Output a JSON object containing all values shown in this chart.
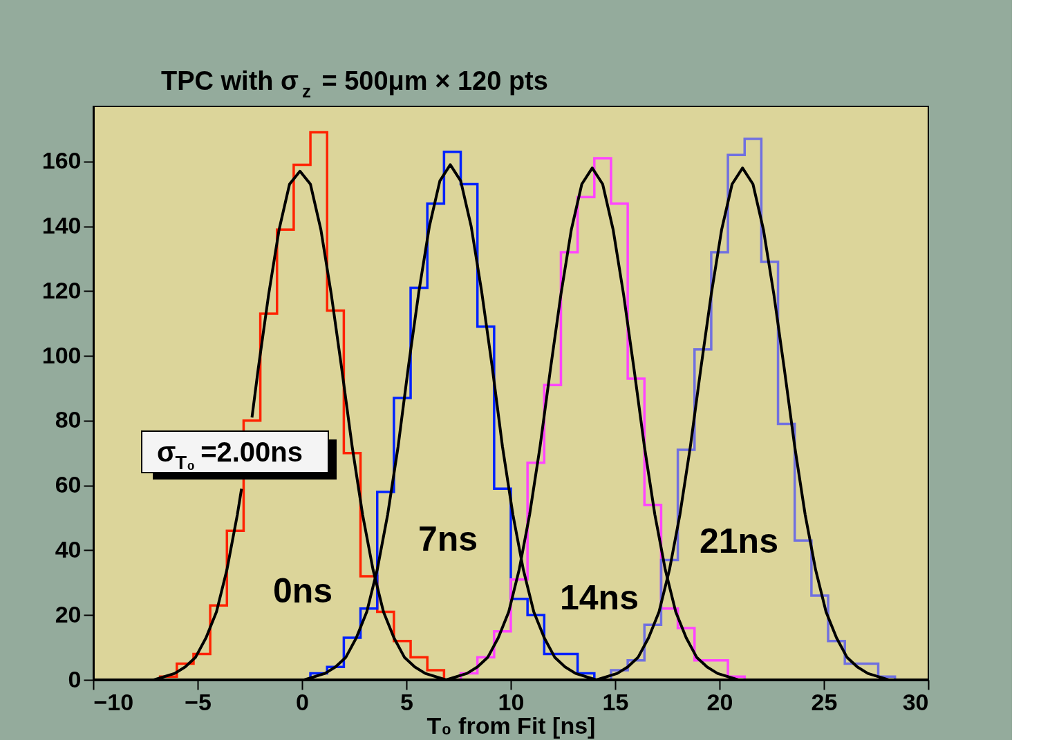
{
  "chart_data": {
    "type": "histogram",
    "title": "TPC with σ$_{z}$ = 500μm × 120 pts",
    "xlabel": "T₀ from Fit [ns]",
    "xlim": [
      -10,
      30
    ],
    "ylim": [
      0,
      177
    ],
    "xticks": [
      -10,
      -5,
      0,
      5,
      10,
      15,
      20,
      25,
      30
    ],
    "yticks": [
      0,
      20,
      40,
      60,
      80,
      100,
      120,
      140,
      160
    ],
    "bins": [
      -10,
      -9.2,
      -8.4,
      -7.6,
      -6.8,
      -6,
      -5.2,
      -4.4,
      -3.6,
      -2.8,
      -2,
      -1.2,
      -0.4,
      0.4,
      1.2,
      2,
      2.8,
      3.6,
      4.4,
      5.2,
      6,
      6.8,
      7.6,
      8.4,
      9.2,
      10,
      10.8,
      11.6,
      12.4,
      13.2,
      14,
      14.8,
      15.6,
      16.4,
      17.2,
      18,
      18.8,
      19.6,
      20.4,
      21.2,
      22,
      22.8,
      23.6,
      24.4,
      25.2,
      26,
      26.8,
      27.6,
      28.4,
      29.2,
      30
    ],
    "series": [
      {
        "color": "#ff2200",
        "values": [
          0,
          0,
          0,
          0,
          1,
          5,
          8,
          23,
          46,
          80,
          113,
          139,
          159,
          169,
          114,
          70,
          32,
          21,
          12,
          7,
          3,
          0,
          0,
          0,
          0,
          0,
          0,
          0,
          0,
          0,
          0,
          0,
          0,
          0,
          0,
          0,
          0,
          0,
          0,
          0,
          0,
          0,
          0,
          0,
          0,
          0,
          0,
          0,
          0,
          0
        ]
      },
      {
        "color": "#0022ff",
        "values": [
          0,
          0,
          0,
          0,
          0,
          0,
          0,
          0,
          0,
          0,
          0,
          0,
          0,
          2,
          4,
          13,
          22,
          58,
          87,
          121,
          147,
          163,
          153,
          109,
          59,
          25,
          20,
          8,
          8,
          2,
          0,
          0,
          0,
          0,
          0,
          0,
          0,
          0,
          0,
          0,
          0,
          0,
          0,
          0,
          0,
          0,
          0,
          0,
          0,
          0
        ]
      },
      {
        "color": "#ff44ff",
        "values": [
          0,
          0,
          0,
          0,
          0,
          0,
          0,
          0,
          0,
          0,
          0,
          0,
          0,
          0,
          0,
          0,
          0,
          0,
          0,
          0,
          0,
          0,
          2,
          7,
          15,
          31,
          67,
          91,
          132,
          149,
          161,
          147,
          93,
          54,
          22,
          16,
          6,
          6,
          1,
          0,
          0,
          0,
          0,
          0,
          0,
          0,
          0,
          0,
          0,
          0
        ]
      },
      {
        "color": "#7070e0",
        "values": [
          0,
          0,
          0,
          0,
          0,
          0,
          0,
          0,
          0,
          0,
          0,
          0,
          0,
          0,
          0,
          0,
          0,
          0,
          0,
          0,
          0,
          0,
          0,
          0,
          0,
          0,
          0,
          0,
          0,
          0,
          0,
          3,
          6,
          17,
          37,
          71,
          102,
          132,
          162,
          167,
          129,
          79,
          43,
          26,
          12,
          5,
          5,
          1,
          0,
          0
        ]
      },
      {
        "type": "line",
        "color": "#000000",
        "x": [
          -10,
          -7.1,
          -6.1,
          -5.6,
          -5.1,
          -4.6,
          -4.1,
          -3.6,
          -3.1,
          -2.9,
          -2.6,
          -2.4,
          -2.1,
          -1.6,
          -1.1,
          -0.6,
          -0.1,
          0.4,
          0.9,
          1.4,
          1.9,
          2.4,
          2.9,
          3.4,
          3.9,
          4.4,
          4.9,
          5.4,
          5.9,
          6.9,
          30
        ],
        "values": [
          0,
          0,
          2,
          4,
          7,
          13,
          21,
          34,
          51,
          59,
          null,
          81,
          96,
          119,
          139,
          153,
          157,
          153,
          139,
          119,
          96,
          72,
          51,
          34,
          21,
          13,
          7,
          4,
          2,
          0,
          0
        ]
      },
      {
        "type": "line",
        "color": "#000000",
        "x": [
          -10,
          0.1,
          1.1,
          1.6,
          2.1,
          2.6,
          3.1,
          3.6,
          4.1,
          4.6,
          5.1,
          5.6,
          6.1,
          6.6,
          7.1,
          7.6,
          8.1,
          8.6,
          9.1,
          9.6,
          10.1,
          10.6,
          11.1,
          11.6,
          12.1,
          12.6,
          13.1,
          14.1,
          30
        ],
        "values": [
          0,
          0,
          2,
          4,
          7,
          13,
          21,
          34,
          51,
          72,
          97,
          120,
          140,
          154,
          159,
          154,
          140,
          120,
          97,
          72,
          51,
          34,
          21,
          13,
          7,
          4,
          2,
          0,
          0
        ]
      },
      {
        "type": "line",
        "color": "#000000",
        "x": [
          -10,
          6.9,
          7.9,
          8.4,
          8.9,
          9.4,
          9.9,
          10.4,
          10.9,
          11.4,
          11.9,
          12.4,
          12.9,
          13.4,
          13.9,
          14.4,
          14.9,
          15.4,
          15.9,
          16.4,
          16.9,
          17.4,
          17.9,
          18.4,
          18.9,
          19.4,
          19.9,
          20.9,
          30
        ],
        "values": [
          0,
          0,
          2,
          4,
          7,
          13,
          21,
          34,
          51,
          72,
          96,
          119,
          139,
          153,
          158,
          153,
          139,
          119,
          96,
          72,
          51,
          34,
          21,
          13,
          7,
          4,
          2,
          0,
          0
        ]
      },
      {
        "type": "line",
        "color": "#000000",
        "x": [
          -10,
          14.1,
          15.1,
          15.6,
          16.1,
          16.6,
          17.1,
          17.6,
          18.1,
          18.6,
          19.1,
          19.6,
          20.1,
          20.6,
          21.1,
          21.6,
          22.1,
          22.6,
          23.1,
          23.6,
          24.1,
          24.6,
          25.1,
          25.6,
          26.1,
          26.6,
          27.1,
          28.1,
          30
        ],
        "values": [
          0,
          0,
          2,
          4,
          7,
          13,
          21,
          34,
          51,
          72,
          96,
          119,
          139,
          153,
          158,
          153,
          139,
          119,
          96,
          72,
          51,
          34,
          21,
          13,
          7,
          4,
          2,
          0,
          0
        ]
      }
    ],
    "annotations": [
      "σ$_{T₀}$=2.00ns",
      "0ns",
      "7ns",
      "14ns",
      "21ns"
    ]
  }
}
